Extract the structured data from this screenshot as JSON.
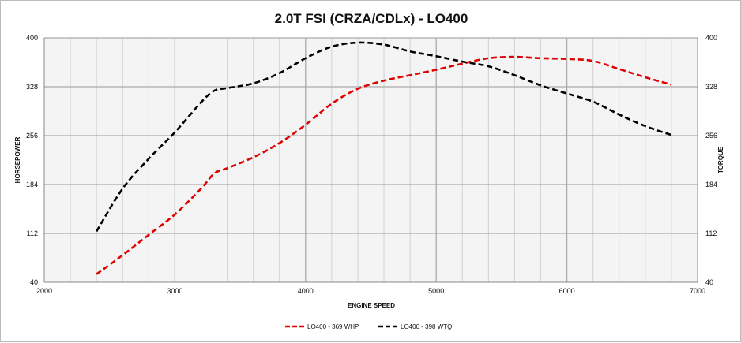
{
  "chart_data": {
    "type": "line",
    "title": "2.0T FSI (CRZA/CDLx) - LO400",
    "xlabel": "ENGINE SPEED",
    "ylabel": "HORSEPOWER",
    "y2label": "TORQUE",
    "xlim": [
      2000,
      7000
    ],
    "ylim": [
      40,
      400
    ],
    "xticks": [
      2000,
      3000,
      4000,
      5000,
      6000,
      7000
    ],
    "yticks": [
      40,
      112,
      184,
      256,
      328,
      400
    ],
    "grid": true,
    "legend_position": "bottom",
    "series": [
      {
        "name": "LO400 - 369 WHP",
        "color": "#e00000",
        "x": [
          2400,
          2600,
          2800,
          3000,
          3200,
          3300,
          3400,
          3600,
          3800,
          4000,
          4200,
          4400,
          4600,
          4800,
          5000,
          5200,
          5400,
          5600,
          5800,
          6000,
          6200,
          6400,
          6600,
          6800
        ],
        "y": [
          52,
          80,
          110,
          140,
          178,
          200,
          208,
          224,
          245,
          272,
          303,
          325,
          337,
          345,
          353,
          362,
          370,
          372,
          370,
          369,
          366,
          354,
          342,
          331
        ]
      },
      {
        "name": "LO400 - 398 WTQ",
        "color": "#000000",
        "x": [
          2400,
          2600,
          2800,
          3000,
          3200,
          3300,
          3400,
          3600,
          3800,
          4000,
          4200,
          4400,
          4600,
          4800,
          5000,
          5200,
          5400,
          5600,
          5800,
          6000,
          6200,
          6400,
          6600,
          6800
        ],
        "y": [
          115,
          178,
          222,
          261,
          305,
          322,
          326,
          333,
          348,
          370,
          387,
          393,
          390,
          380,
          373,
          365,
          358,
          345,
          330,
          318,
          306,
          287,
          270,
          257
        ]
      }
    ]
  }
}
